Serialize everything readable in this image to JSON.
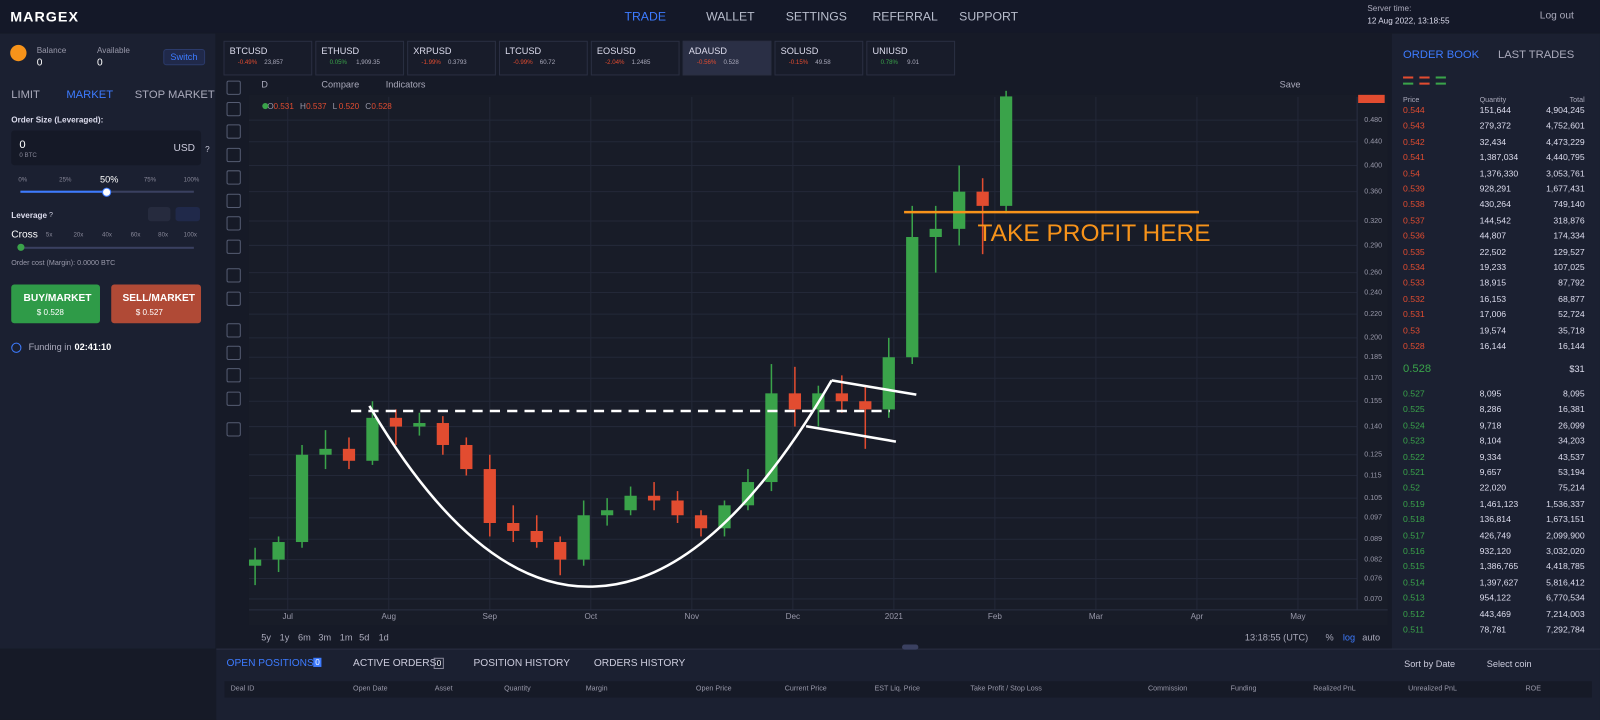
{
  "header": {
    "logo": "MARGEX",
    "nav": [
      "TRADE",
      "WALLET",
      "SETTINGS",
      "REFERRAL",
      "SUPPORT"
    ],
    "server_time_label": "Server time:",
    "server_time": "12 Aug 2022, 13:18:55",
    "logout": "Log out"
  },
  "sidebar": {
    "balance_label": "Balance",
    "balance": "0",
    "available_label": "Available",
    "available": "0",
    "switch": "Switch",
    "order_tabs": [
      "LIMIT",
      "MARKET",
      "STOP MARKET"
    ],
    "order_size_label": "Order Size (Leveraged):",
    "order_size": "0",
    "order_size_sub": "0 BTC",
    "currency": "USD",
    "help": "?",
    "size_steps": [
      "0%",
      "25%",
      "50%",
      "75%",
      "100%"
    ],
    "leverage_label": "Leverage",
    "cross": "Cross",
    "leverage_steps": [
      "5x",
      "20x",
      "40x",
      "60x",
      "80x",
      "100x"
    ],
    "order_cost": "Order cost (Margin): 0.0000 BTC",
    "buy": "BUY/MARKET",
    "buy_price": "$ 0.528",
    "sell": "SELL/MARKET",
    "sell_price": "$ 0.527",
    "funding_label": "Funding in",
    "funding_time": "02:41:10"
  },
  "tickers": [
    {
      "symbol": "BTCUSD",
      "change": "-0.49%",
      "price": "23,857"
    },
    {
      "symbol": "ETHUSD",
      "change": "0.05%",
      "price": "1,909.35"
    },
    {
      "symbol": "XRPUSD",
      "change": "-1.99%",
      "price": "0.3793"
    },
    {
      "symbol": "LTCUSD",
      "change": "-0.99%",
      "price": "60.72"
    },
    {
      "symbol": "EOSUSD",
      "change": "-2.04%",
      "price": "1.2485"
    },
    {
      "symbol": "ADAUSD",
      "change": "-0.56%",
      "price": "0.528"
    },
    {
      "symbol": "SOLUSD",
      "change": "-0.15%",
      "price": "49.58"
    },
    {
      "symbol": "UNIUSD",
      "change": "0.78%",
      "price": "9.01"
    }
  ],
  "toolbar": {
    "interval": "D",
    "compare": "Compare",
    "indicators": "Indicators",
    "save": "Save"
  },
  "chart": {
    "type": "candlestick",
    "log_scale": true,
    "grid": true,
    "up_color": "#3aa34a",
    "down_color": "#e24c30",
    "ohlc": [
      {
        "label": "O",
        "value": "0.531"
      },
      {
        "label": "H",
        "value": "0.537"
      },
      {
        "label": "L",
        "value": "0.520"
      },
      {
        "label": "C",
        "value": "0.528"
      }
    ],
    "annotation": "TAKE PROFIT HERE",
    "ylim": [
      0.067,
      0.527
    ],
    "yticks": [
      {
        "value": 0.48,
        "label": "0.480"
      },
      {
        "value": 0.44,
        "label": "0.440"
      },
      {
        "value": 0.4,
        "label": "0.400"
      },
      {
        "value": 0.36,
        "label": "0.360"
      },
      {
        "value": 0.32,
        "label": "0.320"
      },
      {
        "value": 0.29,
        "label": "0.290"
      },
      {
        "value": 0.26,
        "label": "0.260"
      },
      {
        "value": 0.24,
        "label": "0.240"
      },
      {
        "value": 0.22,
        "label": "0.220"
      },
      {
        "value": 0.2,
        "label": "0.200"
      },
      0.185,
      {
        "value": 0.17,
        "label": "0.170"
      },
      0.155,
      {
        "value": 0.14,
        "label": "0.140"
      },
      0.125,
      0.115,
      0.105,
      0.097,
      0.089,
      0.082,
      0.076,
      {
        "value": 0.07,
        "label": "0.070"
      }
    ],
    "xticks": [
      "Jul",
      "Aug",
      "Sep",
      "Oct",
      "Nov",
      "Dec",
      "2021",
      "Feb",
      "Mar",
      "Apr",
      "May"
    ],
    "candles": [
      {
        "o": 0.08,
        "h": 0.086,
        "l": 0.074,
        "c": 0.082
      },
      {
        "o": 0.082,
        "h": 0.09,
        "l": 0.078,
        "c": 0.088
      },
      {
        "o": 0.088,
        "h": 0.13,
        "l": 0.086,
        "c": 0.125
      },
      {
        "o": 0.125,
        "h": 0.138,
        "l": 0.118,
        "c": 0.128
      },
      {
        "o": 0.128,
        "h": 0.134,
        "l": 0.118,
        "c": 0.122
      },
      {
        "o": 0.122,
        "h": 0.155,
        "l": 0.12,
        "c": 0.145
      },
      {
        "o": 0.145,
        "h": 0.15,
        "l": 0.13,
        "c": 0.14
      },
      {
        "o": 0.14,
        "h": 0.148,
        "l": 0.135,
        "c": 0.142
      },
      {
        "o": 0.142,
        "h": 0.146,
        "l": 0.125,
        "c": 0.13
      },
      {
        "o": 0.13,
        "h": 0.134,
        "l": 0.115,
        "c": 0.118
      },
      {
        "o": 0.118,
        "h": 0.125,
        "l": 0.09,
        "c": 0.095
      },
      {
        "o": 0.095,
        "h": 0.102,
        "l": 0.088,
        "c": 0.092
      },
      {
        "o": 0.092,
        "h": 0.098,
        "l": 0.086,
        "c": 0.088
      },
      {
        "o": 0.088,
        "h": 0.09,
        "l": 0.077,
        "c": 0.082
      },
      {
        "o": 0.082,
        "h": 0.104,
        "l": 0.08,
        "c": 0.098
      },
      {
        "o": 0.098,
        "h": 0.105,
        "l": 0.094,
        "c": 0.1
      },
      {
        "o": 0.1,
        "h": 0.11,
        "l": 0.098,
        "c": 0.106
      },
      {
        "o": 0.106,
        "h": 0.112,
        "l": 0.1,
        "c": 0.104
      },
      {
        "o": 0.104,
        "h": 0.108,
        "l": 0.095,
        "c": 0.098
      },
      {
        "o": 0.098,
        "h": 0.1,
        "l": 0.09,
        "c": 0.093
      },
      {
        "o": 0.093,
        "h": 0.104,
        "l": 0.09,
        "c": 0.102
      },
      {
        "o": 0.102,
        "h": 0.118,
        "l": 0.1,
        "c": 0.112
      },
      {
        "o": 0.112,
        "h": 0.18,
        "l": 0.108,
        "c": 0.16
      },
      {
        "o": 0.16,
        "h": 0.178,
        "l": 0.14,
        "c": 0.15
      },
      {
        "o": 0.15,
        "h": 0.165,
        "l": 0.14,
        "c": 0.16
      },
      {
        "o": 0.16,
        "h": 0.172,
        "l": 0.148,
        "c": 0.155
      },
      {
        "o": 0.155,
        "h": 0.165,
        "l": 0.128,
        "c": 0.15
      },
      {
        "o": 0.15,
        "h": 0.2,
        "l": 0.145,
        "c": 0.185
      },
      {
        "o": 0.185,
        "h": 0.34,
        "l": 0.18,
        "c": 0.3
      },
      {
        "o": 0.3,
        "h": 0.34,
        "l": 0.26,
        "c": 0.31
      },
      {
        "o": 0.31,
        "h": 0.4,
        "l": 0.29,
        "c": 0.36
      },
      {
        "o": 0.36,
        "h": 0.38,
        "l": 0.28,
        "c": 0.34
      },
      {
        "o": 0.34,
        "h": 0.54,
        "l": 0.33,
        "c": 0.528
      }
    ]
  },
  "chart_footer": {
    "timeframes": [
      "5y",
      "1y",
      "6m",
      "3m",
      "1m",
      "5d",
      "1d"
    ],
    "clock": "13:18:55 (UTC)",
    "scale_buttons": [
      "%",
      "log",
      "auto"
    ]
  },
  "order_book": {
    "tabs": [
      "ORDER BOOK",
      "LAST TRADES"
    ],
    "columns": [
      "Price",
      "Quantity",
      "Total"
    ],
    "asks": [
      [
        "0.544",
        "151,644",
        "4,904,245"
      ],
      [
        "0.543",
        "279,372",
        "4,752,601"
      ],
      [
        "0.542",
        "32,434",
        "4,473,229"
      ],
      [
        "0.541",
        "1,387,034",
        "4,440,795"
      ],
      [
        "0.54",
        "1,376,330",
        "3,053,761"
      ],
      [
        "0.539",
        "928,291",
        "1,677,431"
      ],
      [
        "0.538",
        "430,264",
        "749,140"
      ],
      [
        "0.537",
        "144,542",
        "318,876"
      ],
      [
        "0.536",
        "44,807",
        "174,334"
      ],
      [
        "0.535",
        "22,502",
        "129,527"
      ],
      [
        "0.534",
        "19,233",
        "107,025"
      ],
      [
        "0.533",
        "18,915",
        "87,792"
      ],
      [
        "0.532",
        "16,153",
        "68,877"
      ],
      [
        "0.531",
        "17,006",
        "52,724"
      ],
      [
        "0.53",
        "19,574",
        "35,718"
      ],
      [
        "0.528",
        "16,144",
        "16,144"
      ]
    ],
    "last_price": "0.528",
    "last_value": "$31",
    "bids": [
      [
        "0.527",
        "8,095",
        "8,095"
      ],
      [
        "0.525",
        "8,286",
        "16,381"
      ],
      [
        "0.524",
        "9,718",
        "26,099"
      ],
      [
        "0.523",
        "8,104",
        "34,203"
      ],
      [
        "0.522",
        "9,334",
        "43,537"
      ],
      [
        "0.521",
        "9,657",
        "53,194"
      ],
      [
        "0.52",
        "22,020",
        "75,214"
      ],
      [
        "0.519",
        "1,461,123",
        "1,536,337"
      ],
      [
        "0.518",
        "136,814",
        "1,673,151"
      ],
      [
        "0.517",
        "426,749",
        "2,099,900"
      ],
      [
        "0.516",
        "932,120",
        "3,032,020"
      ],
      [
        "0.515",
        "1,386,765",
        "4,418,785"
      ],
      [
        "0.514",
        "1,397,627",
        "5,816,412"
      ],
      [
        "0.513",
        "954,122",
        "6,770,534"
      ],
      [
        "0.512",
        "443,469",
        "7,214,003"
      ],
      [
        "0.511",
        "78,781",
        "7,292,784"
      ]
    ]
  },
  "positions": {
    "tabs": [
      "OPEN POSITIONS",
      "ACTIVE ORDERS",
      "POSITION HISTORY",
      "ORDERS HISTORY"
    ],
    "counts": [
      "0",
      "0"
    ],
    "sort": "Sort by Date",
    "select": "Select coin",
    "columns": [
      "Deal ID",
      "Open Date",
      "Asset",
      "Quantity",
      "Margin",
      "Open Price",
      "Current Price",
      "EST Liq. Price",
      "Take Profit / Stop Loss",
      "Commission",
      "Funding",
      "Realized PnL",
      "Unrealized PnL",
      "ROE"
    ]
  }
}
